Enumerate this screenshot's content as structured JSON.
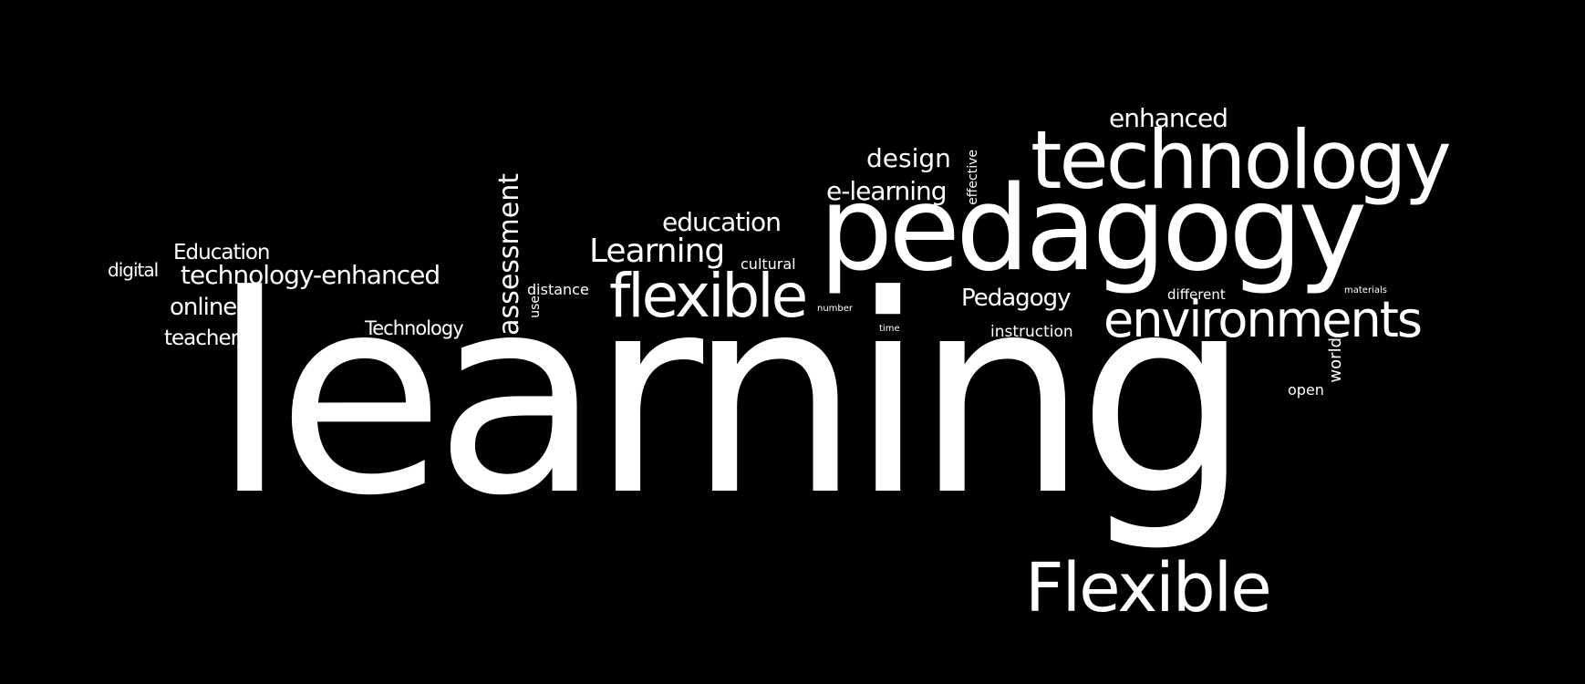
{
  "word_cloud": {
    "background_color": "#000000",
    "text_color": "#ffffff",
    "words": {
      "learning": "learning",
      "pedagogy": "pedagogy",
      "technology": "technology",
      "flexible": "flexible",
      "Flexible": "Flexible",
      "environments": "environments",
      "technology_enhanced": "technology-enhanced",
      "Learning": "Learning",
      "education": "education",
      "assessment": "assessment",
      "design": "design",
      "e_learning": "e-learning",
      "enhanced": "enhanced",
      "Pedagogy": "Pedagogy",
      "Education": "Education",
      "online": "online",
      "teacher": "teacher",
      "Technology": "Technology",
      "digital": "digital",
      "distance": "distance",
      "cultural": "cultural",
      "instruction": "instruction",
      "different": "different",
      "open": "open",
      "world": "world",
      "effective": "effective",
      "use": "use",
      "number": "number",
      "time": "time",
      "materials": "materials"
    }
  }
}
